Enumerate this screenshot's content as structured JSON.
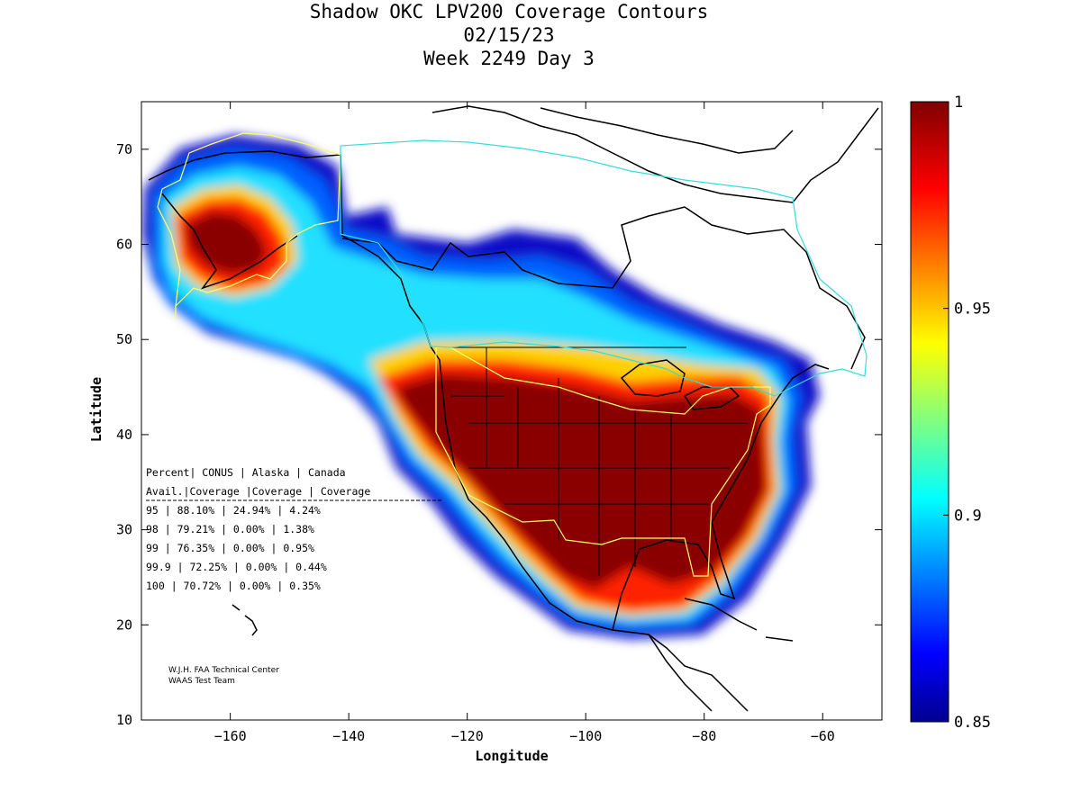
{
  "title": {
    "line1": "Shadow OKC LPV200 Coverage Contours",
    "line2": "02/15/23",
    "line3": "Week 2249 Day 3"
  },
  "chart_data": {
    "type": "heatmap",
    "xlabel": "Longitude",
    "ylabel": "Latitude",
    "xlim": [
      -175,
      -50
    ],
    "ylim": [
      10,
      75
    ],
    "xticks": [
      -160,
      -140,
      -120,
      -100,
      -80,
      -60
    ],
    "yticks": [
      10,
      20,
      30,
      40,
      50,
      60,
      70
    ],
    "colorbar": {
      "min": 0.85,
      "max": 1,
      "ticks": [
        {
          "value": 1,
          "label": "1"
        },
        {
          "value": 0.95,
          "label": "0.95"
        },
        {
          "value": 0.9,
          "label": "0.9"
        },
        {
          "value": 0.85,
          "label": "0.85"
        }
      ],
      "colormap": "jet"
    },
    "table": {
      "header1": "Percent| CONUS    | Alaska  | Canada",
      "header2": " Avail.|Coverage |Coverage | Coverage",
      "rows": [
        "  95    | 88.10%  | 24.94% | 4.24%",
        "  98    | 79.21%  | 0.00% | 1.38%",
        "  99    | 76.35%  | 0.00% | 0.95%",
        "99.9    | 72.25%  | 0.00% | 0.44%",
        " 100    | 70.72%  | 0.00% | 0.35%"
      ]
    },
    "credit": [
      "W.J.H. FAA Technical Center",
      "WAAS Test Team"
    ]
  },
  "colors": {
    "coverage_high": "#800000",
    "coverage_mid": "#00ffff",
    "coverage_low": "#00008f",
    "coastline": "#000000",
    "service_volume_conus": "#ffff66",
    "service_volume_canada": "#33dddd"
  }
}
